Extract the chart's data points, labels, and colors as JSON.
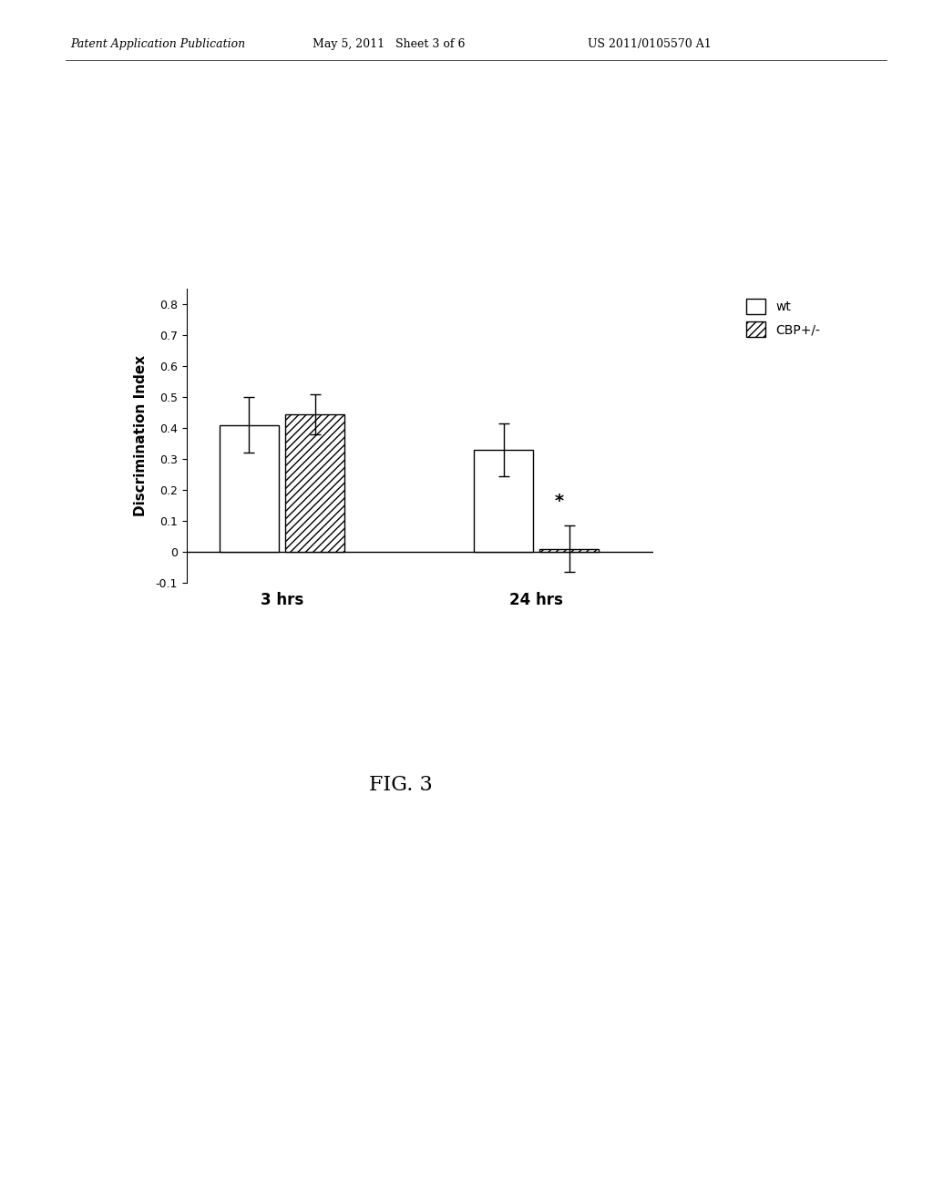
{
  "title": "",
  "ylabel": "Discrimination Index",
  "ylim": [
    -0.1,
    0.85
  ],
  "yticks": [
    -0.1,
    0,
    0.1,
    0.2,
    0.3,
    0.4,
    0.5,
    0.6,
    0.7,
    0.8
  ],
  "groups": [
    "3 hrs",
    "24 hrs"
  ],
  "series": [
    "wt",
    "CBP+/-"
  ],
  "values": {
    "wt": [
      0.41,
      0.33
    ],
    "CBP+/-": [
      0.445,
      0.01
    ]
  },
  "errors": {
    "wt": [
      0.09,
      0.085
    ],
    "CBP+/-": [
      0.065,
      0.075
    ]
  },
  "bar_width": 0.28,
  "group_positions": [
    1.0,
    2.2
  ],
  "colors": {
    "wt": "white",
    "CBP+/-": "white"
  },
  "hatch": {
    "wt": "",
    "CBP+/-": "////"
  },
  "star_annotation": {
    "group": 1,
    "series": "CBP+/-",
    "text": "*"
  },
  "figure_label": "FIG. 3",
  "header_left": "Patent Application Publication",
  "header_mid": "May 5, 2011   Sheet 3 of 6",
  "header_right": "US 2011/0105570 A1",
  "background_color": "white",
  "edge_color": "black",
  "font_size_axis": 11,
  "font_size_ticks": 9,
  "font_size_legend": 10,
  "font_size_header": 9,
  "font_size_fig_label": 16,
  "font_size_star": 14,
  "font_size_xlabel": 12
}
